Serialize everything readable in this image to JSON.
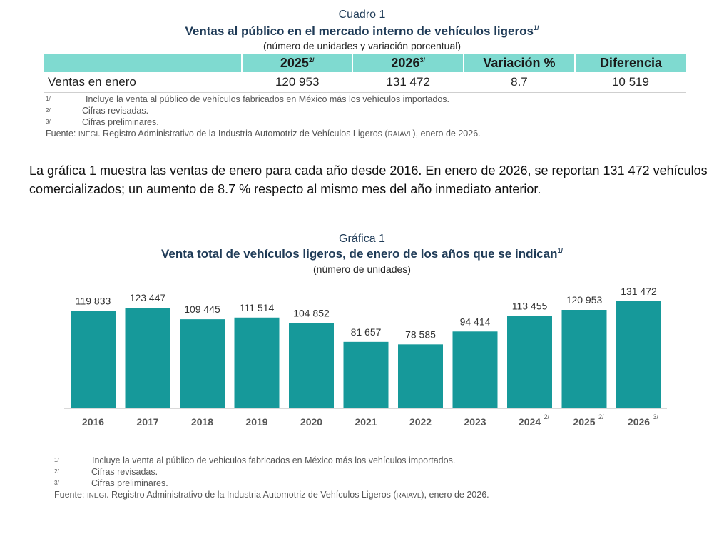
{
  "cuadro": {
    "label": "Cuadro 1",
    "title": "Ventas al público en el mercado interno de vehículos ligeros",
    "title_note": "1/",
    "subtitle": "(número de unidades y variación porcentual)",
    "header_color": "#7fdad0",
    "columns": [
      {
        "label": "",
        "note": ""
      },
      {
        "label": "2025",
        "note": "2/"
      },
      {
        "label": "2026",
        "note": "3/"
      },
      {
        "label": "Variación %",
        "note": ""
      },
      {
        "label": "Diferencia",
        "note": ""
      }
    ],
    "rows": [
      {
        "label": "Ventas en enero",
        "values": [
          "120 953",
          "131 472",
          "8.7",
          "10 519"
        ]
      }
    ],
    "notes": [
      {
        "mark": "1/",
        "text": "Incluye la venta al público de vehículos fabricados en México más los vehículos importados."
      },
      {
        "mark": "2/",
        "text": "Cifras revisadas."
      },
      {
        "mark": "3/",
        "text": "Cifras preliminares."
      }
    ],
    "source": {
      "prefix": "Fuente: ",
      "inegi": "INEGI",
      "mid": ". Registro Administrativo de la Industria Automotriz de Vehículos Ligeros (",
      "abbr": "RAIAVL",
      "suffix": "), enero de 2026."
    }
  },
  "paragraph": "La gráfica 1 muestra las ventas de enero para cada año desde 2016. En enero de 2026, se reportan 131 472 vehículos comercializados; un aumento de 8.7 % respecto al mismo mes del año inmediato anterior.",
  "grafica": {
    "label": "Gráfica 1",
    "title": "Venta total de vehículos ligeros, de enero de los años que se indican",
    "title_note": "1/",
    "subtitle": "(número de unidades)",
    "notes": [
      {
        "mark": "1/",
        "text": "Incluye la venta al público de vehiculos fabricados en México más los vehículos importados."
      },
      {
        "mark": "2/",
        "text": "Cifras revisadas."
      },
      {
        "mark": "3/",
        "text": "Cifras preliminares."
      }
    ],
    "source": {
      "prefix": "Fuente: ",
      "inegi": "INEGI",
      "mid": ". Registro Administrativo de la Industria Automotriz de Vehículos Ligeros (",
      "abbr": "RAIAVL",
      "suffix": "), enero de 2026."
    }
  },
  "chart_data": {
    "type": "bar",
    "title": "Venta total de vehículos ligeros, de enero de los años que se indican",
    "subtitle": "(número de unidades)",
    "xlabel": "",
    "ylabel": "",
    "categories": [
      "2016",
      "2017",
      "2018",
      "2019",
      "2020",
      "2021",
      "2022",
      "2023",
      "2024",
      "2025",
      "2026"
    ],
    "category_notes": [
      "",
      "",
      "",
      "",
      "",
      "",
      "",
      "",
      "2/",
      "2/",
      "3/"
    ],
    "values": [
      119833,
      123447,
      109445,
      111514,
      104852,
      81657,
      78585,
      94414,
      113455,
      120953,
      131472
    ],
    "value_labels": [
      "119 833",
      "123 447",
      "109 445",
      "111 514",
      "104 852",
      "81 657",
      "78 585",
      "94 414",
      "113 455",
      "120 953",
      "131 472"
    ],
    "ylim": [
      0,
      131472
    ],
    "grid": false,
    "legend": "none",
    "bar_color": "#16999a"
  }
}
